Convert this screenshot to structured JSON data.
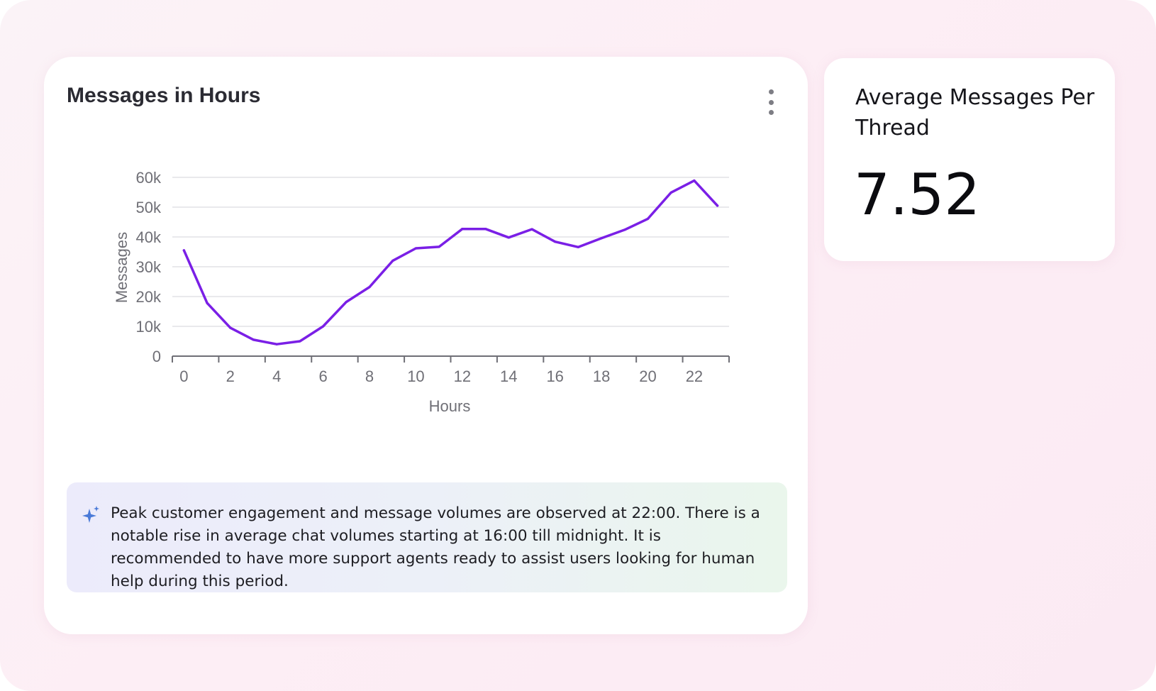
{
  "messages_card": {
    "title": "Messages in Hours",
    "menu_icon": "kebab-menu-icon",
    "insight": {
      "icon": "sparkle-icon",
      "icon_color": "#4a7ad8",
      "text": "Peak customer engagement and message volumes are observed at 22:00. There is a notable rise in average chat volumes starting at 16:00 till midnight. It is recommended to have more support agents ready to assist users looking for human help during this period."
    }
  },
  "stat_card": {
    "label": "Average Messages Per Thread",
    "value": "7.52"
  },
  "chart_data": {
    "type": "line",
    "xlabel": "Hours",
    "ylabel": "Messages",
    "x": [
      0,
      1,
      2,
      3,
      4,
      5,
      6,
      7,
      8,
      9,
      10,
      11,
      12,
      13,
      14,
      15,
      16,
      17,
      18,
      19,
      20,
      21,
      22,
      23
    ],
    "series": [
      {
        "color": "#7a1fe6",
        "values": [
          35500,
          17800,
          9500,
          5500,
          4000,
          5000,
          10000,
          18200,
          23200,
          32000,
          36200,
          36700,
          42700,
          42700,
          39800,
          42600,
          38400,
          36600,
          39600,
          42400,
          46100,
          54900,
          58900,
          50500
        ]
      }
    ],
    "xlim": [
      -0.5,
      23.5
    ],
    "ylim": [
      0,
      60000
    ],
    "x_ticks": [
      0,
      2,
      4,
      6,
      8,
      10,
      12,
      14,
      16,
      18,
      20,
      22
    ],
    "x_minor_ticks": [
      -0.5,
      1.5,
      3.5,
      5.5,
      7.5,
      9.5,
      11.5,
      13.5,
      15.5,
      17.5,
      19.5,
      21.5,
      23.5
    ],
    "y_ticks": [
      0,
      10000,
      20000,
      30000,
      40000,
      50000,
      60000
    ],
    "y_tick_labels": [
      "0",
      "10k",
      "20k",
      "30k",
      "40k",
      "50k",
      "60k"
    ],
    "grid": true,
    "legend": "none"
  }
}
